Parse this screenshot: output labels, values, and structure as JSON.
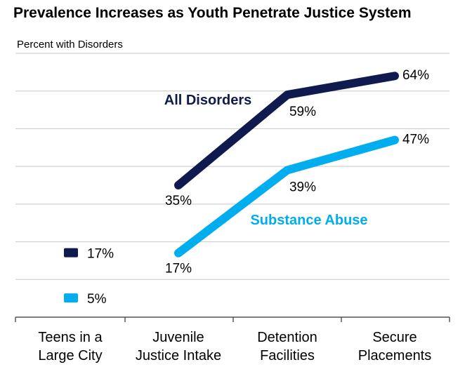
{
  "chart_data": {
    "type": "line",
    "title": "Prevalence Increases as Youth Penetrate Justice System",
    "ylabel": "Percent with Disorders",
    "xlabel": "",
    "categories": [
      "Teens in a Large City",
      "Juvenile Justice Intake",
      "Detention Facilities",
      "Secure Placements"
    ],
    "category_lines": [
      [
        "Teens in a",
        "Large City"
      ],
      [
        "Juvenile",
        "Justice Intake"
      ],
      [
        "Detention",
        "Facilities"
      ],
      [
        "Secure",
        "Placements"
      ]
    ],
    "ylim": [
      0,
      70
    ],
    "grid": true,
    "series": [
      {
        "name": "All Disorders",
        "color": "#0f1a4f",
        "values": [
          17,
          35,
          59,
          64
        ],
        "labels": [
          "17%",
          "35%",
          "59%",
          "64%"
        ],
        "first_point_as_marker": true
      },
      {
        "name": "Substance Abuse",
        "color": "#00adef",
        "values": [
          5,
          17,
          39,
          47
        ],
        "labels": [
          "5%",
          "17%",
          "39%",
          "47%"
        ],
        "first_point_as_marker": true
      }
    ]
  }
}
